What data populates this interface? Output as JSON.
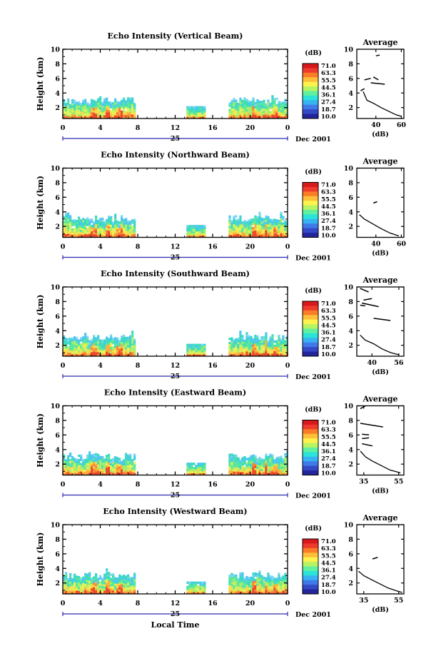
{
  "footer": {
    "xlabel": "Local Time"
  },
  "colorbar": {
    "unit": "(dB)",
    "labels": [
      "71.0",
      "63.3",
      "55.5",
      "44.5",
      "36.1",
      "27.4",
      "18.7",
      "10.0"
    ],
    "colors": [
      "#d7191c",
      "#ef3b2c",
      "#f97d27",
      "#fdbe3a",
      "#fef24c",
      "#b6f464",
      "#5ff0a0",
      "#2be3d8",
      "#37b3f2",
      "#3f7ae8",
      "#3449c6",
      "#23259a"
    ]
  },
  "chart_data": [
    {
      "type": "heatmap",
      "title": "Echo Intensity (Vertical Beam)",
      "ylabel": "Height (km)",
      "xticks": [
        "0",
        "4",
        "8",
        "12",
        "16",
        "20",
        "0"
      ],
      "yticks": [
        "2",
        "4",
        "6",
        "8",
        "10"
      ],
      "xlim": [
        0,
        24
      ],
      "ylim": [
        0.5,
        10
      ],
      "date_label": "25",
      "month_label": "Dec 2001",
      "data_segments": [
        [
          0,
          7.7
        ],
        [
          13.2,
          15.2
        ],
        [
          17.7,
          24
        ]
      ],
      "echo_top_km": 3.0,
      "average_profile": {
        "title": "Average",
        "xlabel": "(dB)",
        "xticks": [
          "40",
          "60"
        ],
        "xlim": [
          25,
          62
        ],
        "yticks": [
          "2",
          "4",
          "6",
          "8",
          "10"
        ],
        "ylim": [
          0.5,
          10
        ],
        "profile": [
          [
            30,
            4.2
          ],
          [
            33,
            3.0
          ],
          [
            38,
            2.6
          ],
          [
            44,
            2.0
          ],
          [
            50,
            1.5
          ],
          [
            56,
            1.0
          ],
          [
            60,
            0.8
          ]
        ],
        "upper_traces": [
          [
            [
              28,
              4.3
            ],
            [
              31,
              4.6
            ]
          ],
          [
            [
              31,
              5.8
            ],
            [
              36,
              6.0
            ]
          ],
          [
            [
              36,
              5.4
            ],
            [
              47,
              5.2
            ]
          ],
          [
            [
              38,
              6.2
            ],
            [
              42,
              5.8
            ]
          ],
          [
            [
              40,
              9.1
            ],
            [
              43,
              9.2
            ]
          ]
        ]
      }
    },
    {
      "type": "heatmap",
      "title": "Echo Intensity (Northward Beam)",
      "ylabel": "Height (km)",
      "xticks": [
        "0",
        "4",
        "8",
        "12",
        "16",
        "20",
        "0"
      ],
      "yticks": [
        "2",
        "4",
        "6",
        "8",
        "10"
      ],
      "xlim": [
        0,
        24
      ],
      "ylim": [
        0.5,
        10
      ],
      "date_label": "25",
      "month_label": "Dec 2001",
      "data_segments": [
        [
          0,
          7.7
        ],
        [
          13.2,
          15.2
        ],
        [
          17.7,
          24
        ]
      ],
      "echo_top_km": 3.1,
      "average_profile": {
        "title": "Average",
        "xlabel": "(dB)",
        "xticks": [
          "40",
          "60"
        ],
        "xlim": [
          25,
          62
        ],
        "yticks": [
          "2",
          "4",
          "6",
          "8",
          "10"
        ],
        "ylim": [
          0.5,
          10
        ],
        "profile": [
          [
            27,
            3.6
          ],
          [
            31,
            3.0
          ],
          [
            37,
            2.4
          ],
          [
            44,
            1.7
          ],
          [
            51,
            1.1
          ],
          [
            58,
            0.7
          ]
        ],
        "upper_traces": [
          [
            [
              38,
              5.2
            ],
            [
              41,
              5.4
            ]
          ]
        ]
      }
    },
    {
      "type": "heatmap",
      "title": "Echo Intensity (Southward Beam)",
      "ylabel": "Height (km)",
      "xticks": [
        "0",
        "4",
        "8",
        "12",
        "16",
        "20",
        "0"
      ],
      "yticks": [
        "2",
        "4",
        "6",
        "8",
        "10"
      ],
      "xlim": [
        0,
        24
      ],
      "ylim": [
        0.5,
        10
      ],
      "date_label": "25",
      "month_label": "Dec 2001",
      "data_segments": [
        [
          0,
          7.7
        ],
        [
          13.2,
          15.2
        ],
        [
          17.7,
          24
        ]
      ],
      "echo_top_km": 3.1,
      "average_profile": {
        "title": "Average",
        "xlabel": "(dB)",
        "xticks": [
          "40",
          "56"
        ],
        "xlim": [
          31,
          59
        ],
        "yticks": [
          "2",
          "4",
          "6",
          "8",
          "10"
        ],
        "ylim": [
          0.5,
          10
        ],
        "profile": [
          [
            33,
            3.4
          ],
          [
            36,
            2.7
          ],
          [
            41,
            2.2
          ],
          [
            46,
            1.5
          ],
          [
            51,
            1.0
          ],
          [
            56,
            0.7
          ]
        ],
        "upper_traces": [
          [
            [
              33,
              9.8
            ],
            [
              38,
              9.3
            ]
          ],
          [
            [
              34,
              7.8
            ],
            [
              44,
              7.3
            ]
          ],
          [
            [
              35,
              8.2
            ],
            [
              40,
              8.4
            ]
          ],
          [
            [
              41,
              5.7
            ],
            [
              51,
              5.4
            ]
          ],
          [
            [
              33,
              7.5
            ],
            [
              36,
              7.4
            ]
          ]
        ]
      }
    },
    {
      "type": "heatmap",
      "title": "Echo Intensity (Eastward Beam)",
      "ylabel": "Height (km)",
      "xticks": [
        "0",
        "4",
        "8",
        "12",
        "16",
        "20",
        "0"
      ],
      "yticks": [
        "2",
        "4",
        "6",
        "8",
        "10"
      ],
      "xlim": [
        0,
        24
      ],
      "ylim": [
        0.5,
        10
      ],
      "date_label": "25",
      "month_label": "Dec 2001",
      "data_segments": [
        [
          0,
          7.7
        ],
        [
          13.2,
          15.2
        ],
        [
          17.7,
          24
        ]
      ],
      "echo_top_km": 3.1,
      "average_profile": {
        "title": "Average",
        "xlabel": "(dB)",
        "xticks": [
          "35",
          "55"
        ],
        "xlim": [
          31,
          58
        ],
        "yticks": [
          "2",
          "4",
          "6",
          "8",
          "10"
        ],
        "ylim": [
          0.5,
          10
        ],
        "profile": [
          [
            33,
            3.8
          ],
          [
            36,
            3.0
          ],
          [
            40,
            2.4
          ],
          [
            45,
            1.8
          ],
          [
            50,
            1.2
          ],
          [
            56,
            0.8
          ]
        ],
        "upper_traces": [
          [
            [
              33,
              9.6
            ],
            [
              36,
              10.0
            ]
          ],
          [
            [
              33,
              7.6
            ],
            [
              46,
              7.1
            ]
          ],
          [
            [
              34,
              6.1
            ],
            [
              38,
              6.0
            ]
          ],
          [
            [
              34,
              4.8
            ],
            [
              40,
              4.5
            ]
          ],
          [
            [
              34,
              5.5
            ],
            [
              38,
              5.6
            ]
          ]
        ]
      }
    },
    {
      "type": "heatmap",
      "title": "Echo Intensity (Westward Beam)",
      "ylabel": "Height (km)",
      "xticks": [
        "0",
        "4",
        "8",
        "12",
        "16",
        "20",
        "0"
      ],
      "yticks": [
        "2",
        "4",
        "6",
        "8",
        "10"
      ],
      "xlim": [
        0,
        24
      ],
      "ylim": [
        0.5,
        10
      ],
      "date_label": "25",
      "month_label": "Dec 2001",
      "data_segments": [
        [
          0,
          7.7
        ],
        [
          13.2,
          15.2
        ],
        [
          17.7,
          24
        ]
      ],
      "echo_top_km": 3.1,
      "average_profile": {
        "title": "Average",
        "xlabel": "(dB)",
        "xticks": [
          "35",
          "55"
        ],
        "xlim": [
          31,
          58
        ],
        "yticks": [
          "2",
          "4",
          "6",
          "8",
          "10"
        ],
        "ylim": [
          0.5,
          10
        ],
        "profile": [
          [
            32,
            3.6
          ],
          [
            35,
            3.0
          ],
          [
            39,
            2.5
          ],
          [
            44,
            1.9
          ],
          [
            49,
            1.3
          ],
          [
            54,
            0.9
          ],
          [
            57,
            0.7
          ]
        ],
        "upper_traces": [
          [
            [
              40,
              5.3
            ],
            [
              43,
              5.5
            ]
          ]
        ]
      }
    }
  ]
}
